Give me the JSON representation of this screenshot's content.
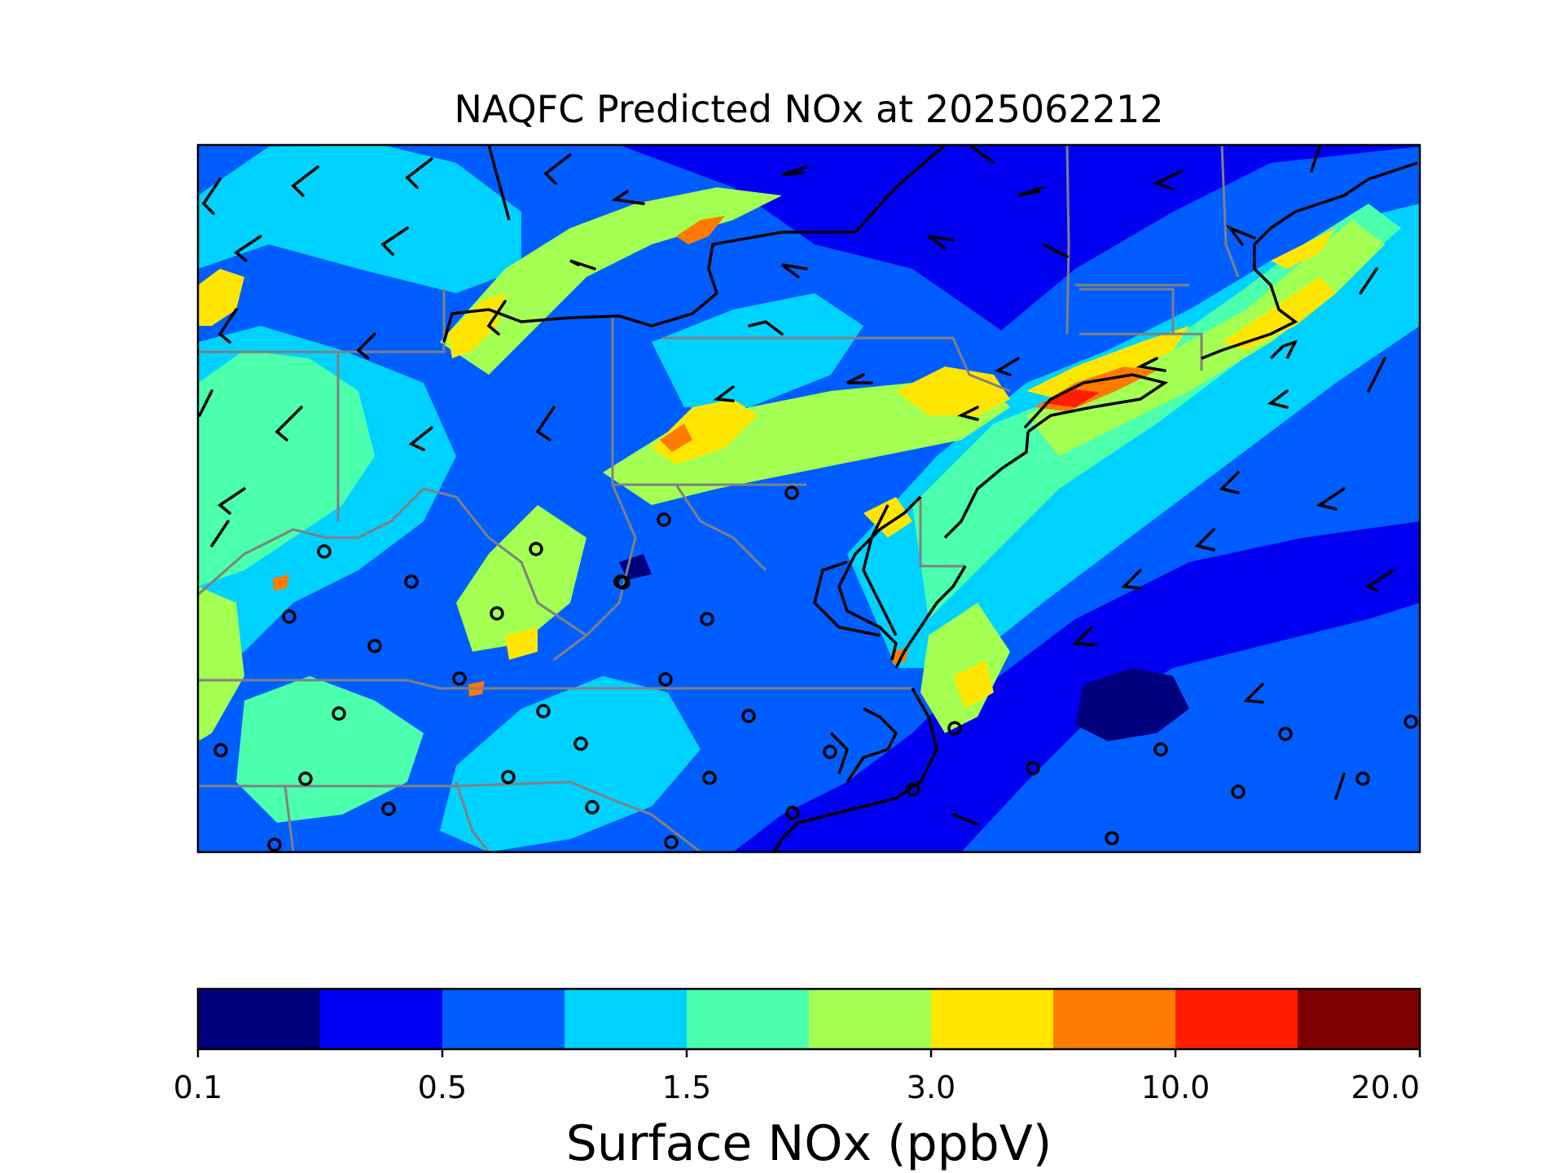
{
  "title": "NAQFC Predicted NOx at 2025062212",
  "colorbar": {
    "label": "Surface NOx (ppbV)",
    "ticks": [
      "0.1",
      "0.5",
      "1.5",
      "3.0",
      "10.0",
      "20.0"
    ],
    "colors": [
      "#00007f",
      "#0000f1",
      "#005dff",
      "#00d2ff",
      "#4bffad",
      "#a4ff53",
      "#ffe600",
      "#ff7a00",
      "#ff1e00",
      "#7f0000"
    ]
  },
  "map": {
    "region": "US Mid-Atlantic / Northeast",
    "overlays": [
      "state-borders",
      "coastlines",
      "wind-barbs",
      "calm-wind-circles"
    ],
    "colors": {
      "background": "#0000f1",
      "state_border": "#808080",
      "coastline": "#000000",
      "barb": "#000000"
    }
  }
}
